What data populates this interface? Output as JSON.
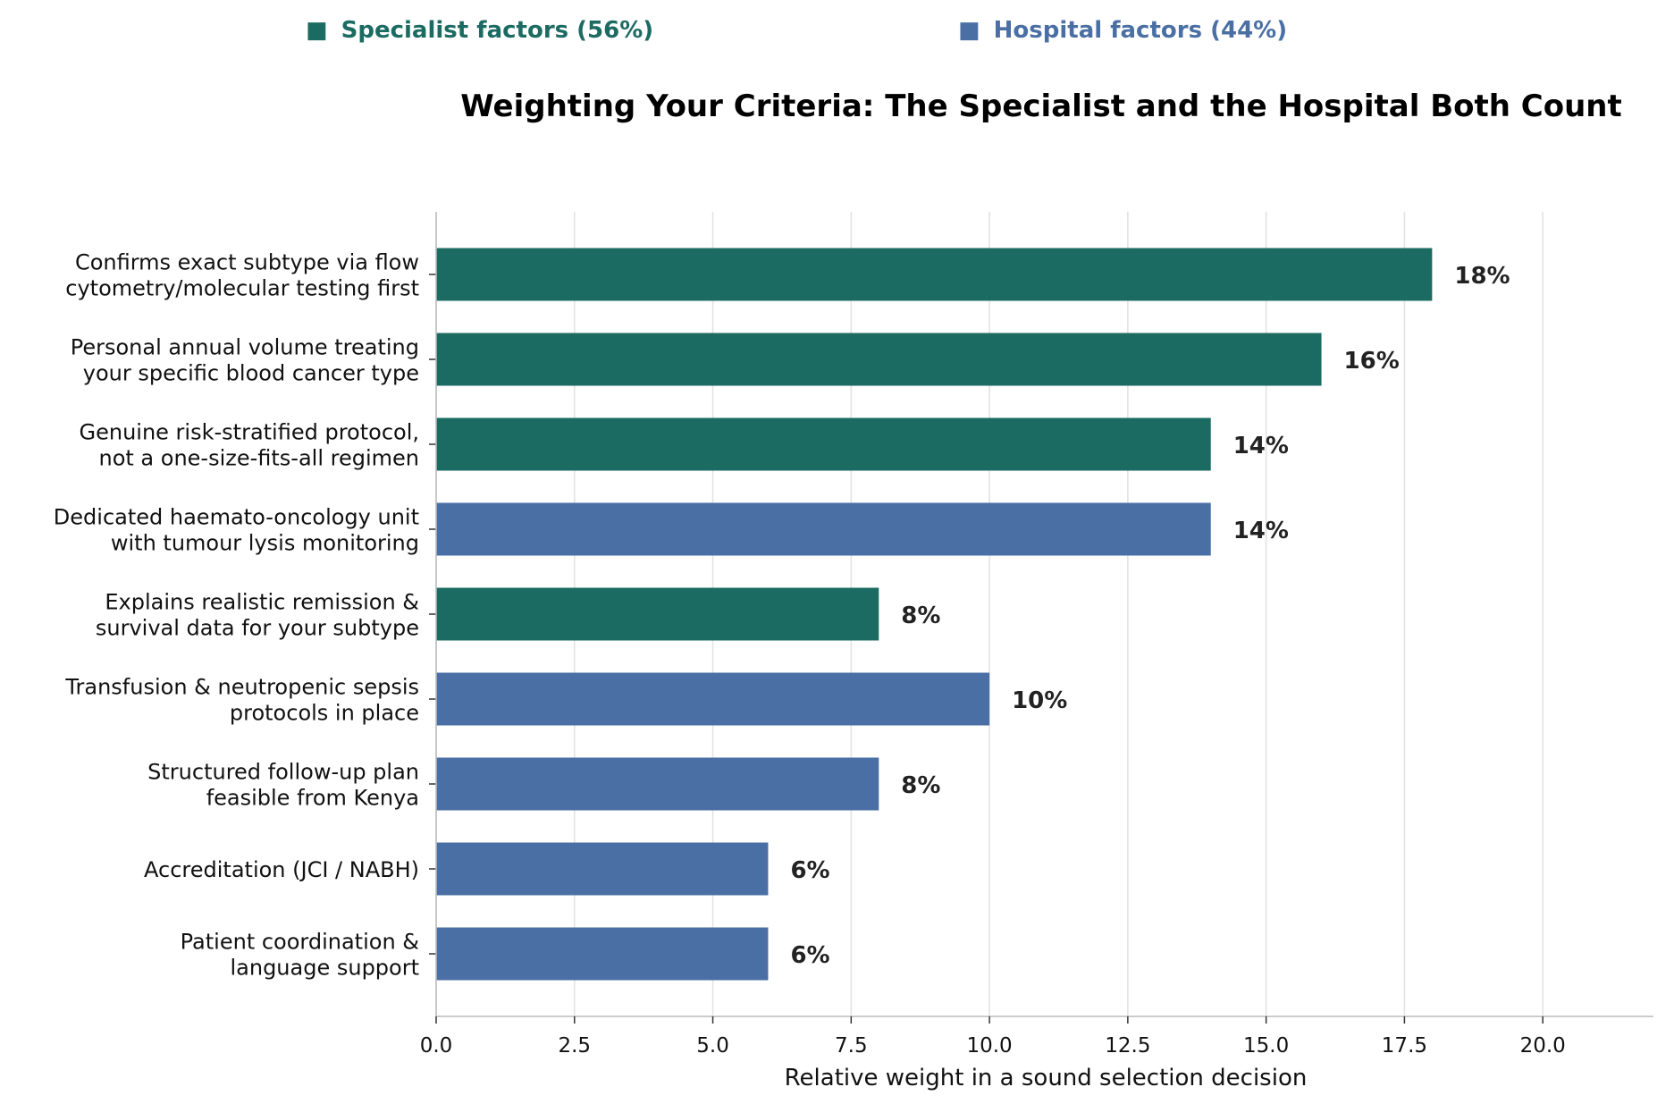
{
  "chart_data": {
    "type": "bar",
    "orientation": "horizontal",
    "title": "Weighting Your Criteria: The Specialist and the Hospital Both Count",
    "xlabel": "Relative weight in a sound selection decision",
    "ylabel": "",
    "xlim": [
      0,
      22
    ],
    "x_ticks": [
      "0.0",
      "2.5",
      "5.0",
      "7.5",
      "10.0",
      "12.5",
      "15.0",
      "17.5",
      "20.0"
    ],
    "x_tick_values": [
      0,
      2.5,
      5,
      7.5,
      10,
      12.5,
      15,
      17.5,
      20
    ],
    "grid": "vertical",
    "legend": {
      "placement": "top",
      "entries": [
        {
          "label": "Specialist factors (56%)",
          "color": "#1c6b62",
          "marker": "■"
        },
        {
          "label": "Hospital factors (44%)",
          "color": "#4a6fa5",
          "marker": "■"
        }
      ]
    },
    "bars": [
      {
        "label_lines": [
          "Confirms exact subtype via flow",
          "cytometry/molecular testing first"
        ],
        "value": 18,
        "value_label": "18%",
        "group": "Specialist factors",
        "color": "#1c6b62"
      },
      {
        "label_lines": [
          "Personal annual volume treating",
          "your specific blood cancer type"
        ],
        "value": 16,
        "value_label": "16%",
        "group": "Specialist factors",
        "color": "#1c6b62"
      },
      {
        "label_lines": [
          "Genuine risk-stratified protocol,",
          "not a one-size-fits-all regimen"
        ],
        "value": 14,
        "value_label": "14%",
        "group": "Specialist factors",
        "color": "#1c6b62"
      },
      {
        "label_lines": [
          "Dedicated haemato-oncology unit",
          "with tumour lysis monitoring"
        ],
        "value": 14,
        "value_label": "14%",
        "group": "Hospital factors",
        "color": "#4a6fa5"
      },
      {
        "label_lines": [
          "Explains realistic remission &",
          "survival data for your subtype"
        ],
        "value": 8,
        "value_label": "8%",
        "group": "Specialist factors",
        "color": "#1c6b62"
      },
      {
        "label_lines": [
          "Transfusion & neutropenic sepsis",
          "protocols in place"
        ],
        "value": 10,
        "value_label": "10%",
        "group": "Hospital factors",
        "color": "#4a6fa5"
      },
      {
        "label_lines": [
          "Structured follow-up plan",
          "feasible from Kenya"
        ],
        "value": 8,
        "value_label": "8%",
        "group": "Hospital factors",
        "color": "#4a6fa5"
      },
      {
        "label_lines": [
          "Accreditation (JCI / NABH)"
        ],
        "value": 6,
        "value_label": "6%",
        "group": "Hospital factors",
        "color": "#4a6fa5"
      },
      {
        "label_lines": [
          "Patient coordination &",
          "language support"
        ],
        "value": 6,
        "value_label": "6%",
        "group": "Hospital factors",
        "color": "#4a6fa5"
      }
    ]
  }
}
